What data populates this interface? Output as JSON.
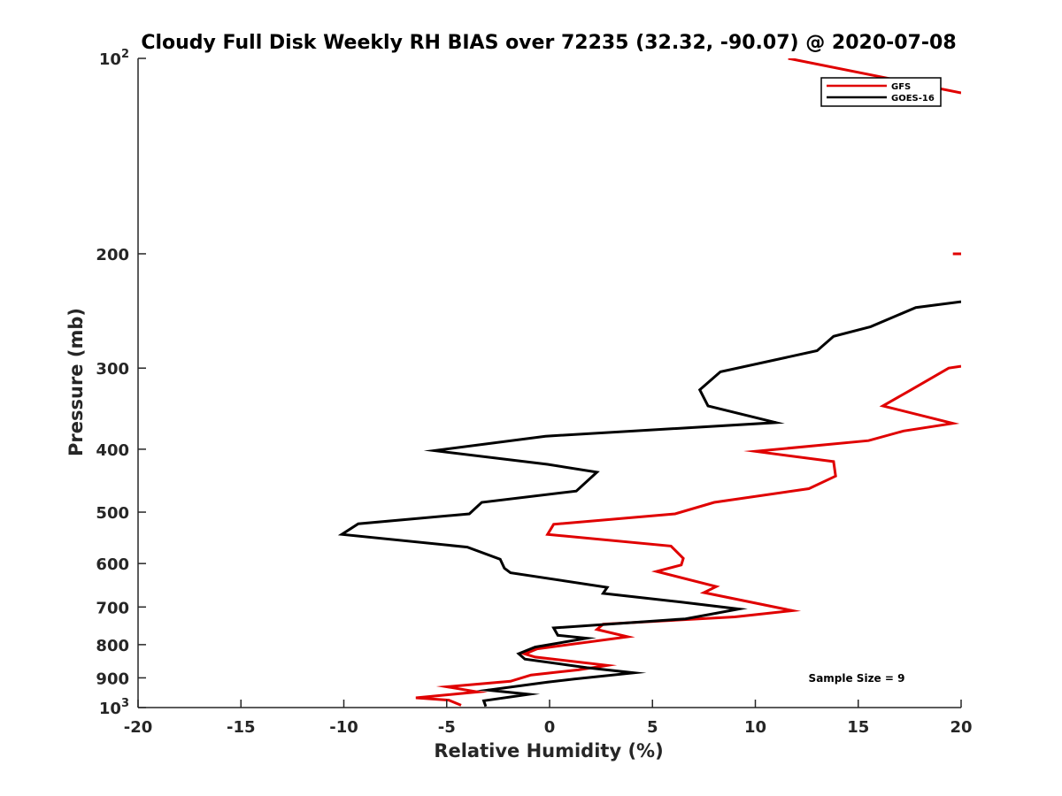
{
  "chart_data": {
    "type": "line",
    "title": "Cloudy Full Disk Weekly RH BIAS over 72235 (32.32, -90.07) @ 2020-07-08",
    "xlabel": "Relative Humidity (%)",
    "ylabel": "Pressure (mb)",
    "xlim": [
      -20,
      20
    ],
    "ylim": [
      100,
      1000
    ],
    "y_scale": "log",
    "y_reversed": true,
    "grid": false,
    "legend_position": "top-right",
    "x_ticks": [
      -20,
      -15,
      -10,
      -5,
      0,
      5,
      10,
      15,
      20
    ],
    "x_tick_labels": [
      "-20",
      "-15",
      "-10",
      "-5",
      "0",
      "5",
      "10",
      "15",
      "20"
    ],
    "y_ticks": [
      {
        "value": 100,
        "base": "10",
        "exp": "2"
      },
      {
        "value": 200,
        "base": "200",
        "exp": ""
      },
      {
        "value": 300,
        "base": "300",
        "exp": ""
      },
      {
        "value": 400,
        "base": "400",
        "exp": ""
      },
      {
        "value": 500,
        "base": "500",
        "exp": ""
      },
      {
        "value": 600,
        "base": "600",
        "exp": ""
      },
      {
        "value": 700,
        "base": "700",
        "exp": ""
      },
      {
        "value": 800,
        "base": "800",
        "exp": ""
      },
      {
        "value": 900,
        "base": "900",
        "exp": ""
      },
      {
        "value": 1000,
        "base": "10",
        "exp": "3"
      }
    ],
    "annotation": "Sample Size = 9",
    "series": [
      {
        "name": "GFS",
        "color": "#e00000",
        "segments": [
          [
            [
              11.6,
              100
            ],
            [
              20,
              113
            ]
          ],
          [
            [
              19.6,
              200
            ],
            [
              20,
              200
            ]
          ],
          [
            [
              20,
              298
            ],
            [
              19.4,
              300
            ],
            [
              17.5,
              325
            ],
            [
              16.2,
              343
            ],
            [
              19.6,
              365
            ],
            [
              17.2,
              375
            ],
            [
              15.5,
              388
            ],
            [
              10.0,
              403
            ],
            [
              13.8,
              418
            ],
            [
              13.9,
              440
            ],
            [
              12.6,
              460
            ],
            [
              8.0,
              483
            ],
            [
              6.1,
              503
            ],
            [
              0.2,
              522
            ],
            [
              -0.1,
              541
            ],
            [
              5.9,
              564
            ],
            [
              6.5,
              589
            ],
            [
              6.4,
              603
            ],
            [
              5.2,
              617
            ],
            [
              8.1,
              651
            ],
            [
              7.5,
              665
            ],
            [
              11.8,
              709
            ],
            [
              9.0,
              725
            ],
            [
              2.6,
              744
            ],
            [
              2.3,
              758
            ],
            [
              3.8,
              778
            ],
            [
              -0.6,
              812
            ],
            [
              -1.2,
              827
            ],
            [
              -0.7,
              836
            ],
            [
              2.8,
              861
            ],
            [
              1.4,
              875
            ],
            [
              -0.9,
              891
            ],
            [
              -1.9,
              911
            ],
            [
              -5.0,
              929
            ],
            [
              -3.5,
              946
            ],
            [
              -6.5,
              966
            ],
            [
              -4.9,
              974
            ],
            [
              -4.3,
              992
            ]
          ]
        ]
      },
      {
        "name": "GOES-16",
        "color": "#000000",
        "segments": [
          [
            [
              20,
              237
            ],
            [
              17.8,
              242
            ],
            [
              15.6,
              259
            ],
            [
              13.8,
              268
            ],
            [
              13.0,
              282
            ],
            [
              8.3,
              304
            ],
            [
              7.3,
              324
            ],
            [
              7.7,
              343
            ],
            [
              11.0,
              364
            ],
            [
              -0.2,
              382
            ],
            [
              -5.6,
              402
            ],
            [
              -0.1,
              422
            ],
            [
              2.3,
              434
            ],
            [
              1.3,
              464
            ],
            [
              -3.3,
              483
            ],
            [
              -3.9,
              503
            ],
            [
              -9.3,
              521
            ],
            [
              -10.1,
              541
            ],
            [
              -4.0,
              566
            ],
            [
              -2.4,
              591
            ],
            [
              -2.2,
              610
            ],
            [
              -1.9,
              620
            ],
            [
              2.8,
              653
            ],
            [
              2.6,
              667
            ],
            [
              6.4,
              688
            ],
            [
              9.2,
              705
            ],
            [
              6.6,
              730
            ],
            [
              0.2,
              754
            ],
            [
              0.4,
              774
            ],
            [
              1.8,
              782
            ],
            [
              -0.7,
              807
            ],
            [
              -1.5,
              826
            ],
            [
              -1.2,
              842
            ],
            [
              1.8,
              868
            ],
            [
              4.1,
              884
            ],
            [
              1.2,
              904
            ],
            [
              -0.1,
              914
            ],
            [
              -3.0,
              940
            ],
            [
              -1.0,
              954
            ],
            [
              -3.2,
              976
            ],
            [
              -3.1,
              996
            ]
          ]
        ]
      }
    ]
  }
}
